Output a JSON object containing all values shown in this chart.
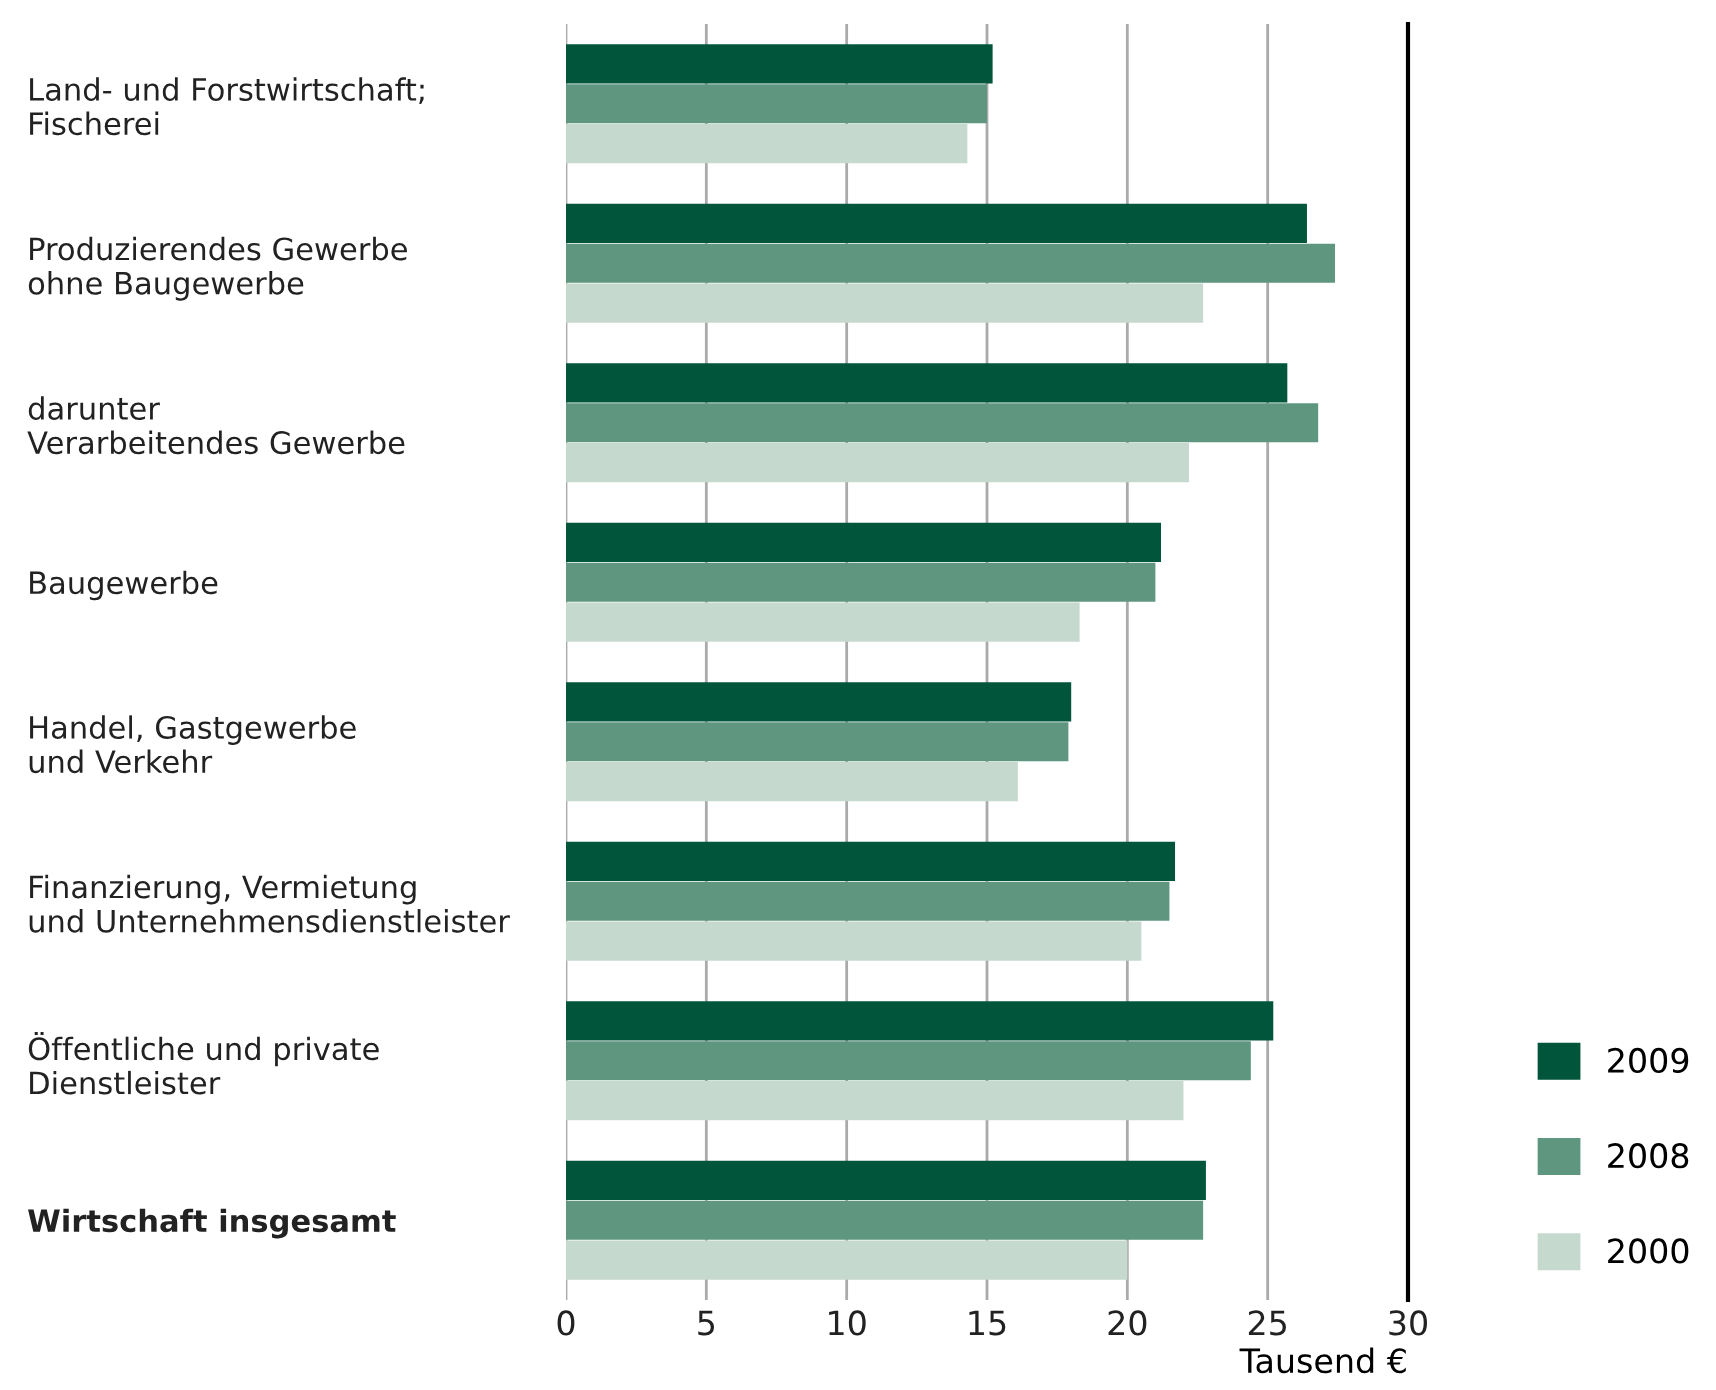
{
  "chart_data": {
    "type": "bar",
    "orientation": "horizontal",
    "xlabel": "Tausend €",
    "categories": [
      "Land- und Forstwirtschaft;\nFischerei",
      "Produzierendes Gewerbe\nohne Baugewerbe",
      "darunter\nVerarbeitendes Gewerbe",
      "Baugewerbe",
      "Handel, Gastgewerbe\nund Verkehr",
      "Finanzierung, Vermietung\nund Unternehmensdienstleister",
      "Öffentliche und private\nDienstleister",
      "Wirtschaft insgesamt"
    ],
    "series": [
      {
        "name": "2009",
        "color": "#00553a",
        "values": [
          15.2,
          26.4,
          25.7,
          21.2,
          18.0,
          21.7,
          25.2,
          22.8
        ]
      },
      {
        "name": "2008",
        "color": "#5e9680",
        "values": [
          15.0,
          27.4,
          26.8,
          21.0,
          17.9,
          21.5,
          24.4,
          22.7
        ]
      },
      {
        "name": "2000",
        "color": "#c6d9cf",
        "values": [
          14.3,
          22.7,
          22.2,
          18.3,
          16.1,
          20.5,
          22.0,
          20.0
        ]
      }
    ],
    "xlim": [
      0,
      30
    ],
    "xticks": [
      0,
      5,
      10,
      15,
      20,
      25,
      30
    ],
    "grid": "x",
    "legend": "bottom right"
  }
}
